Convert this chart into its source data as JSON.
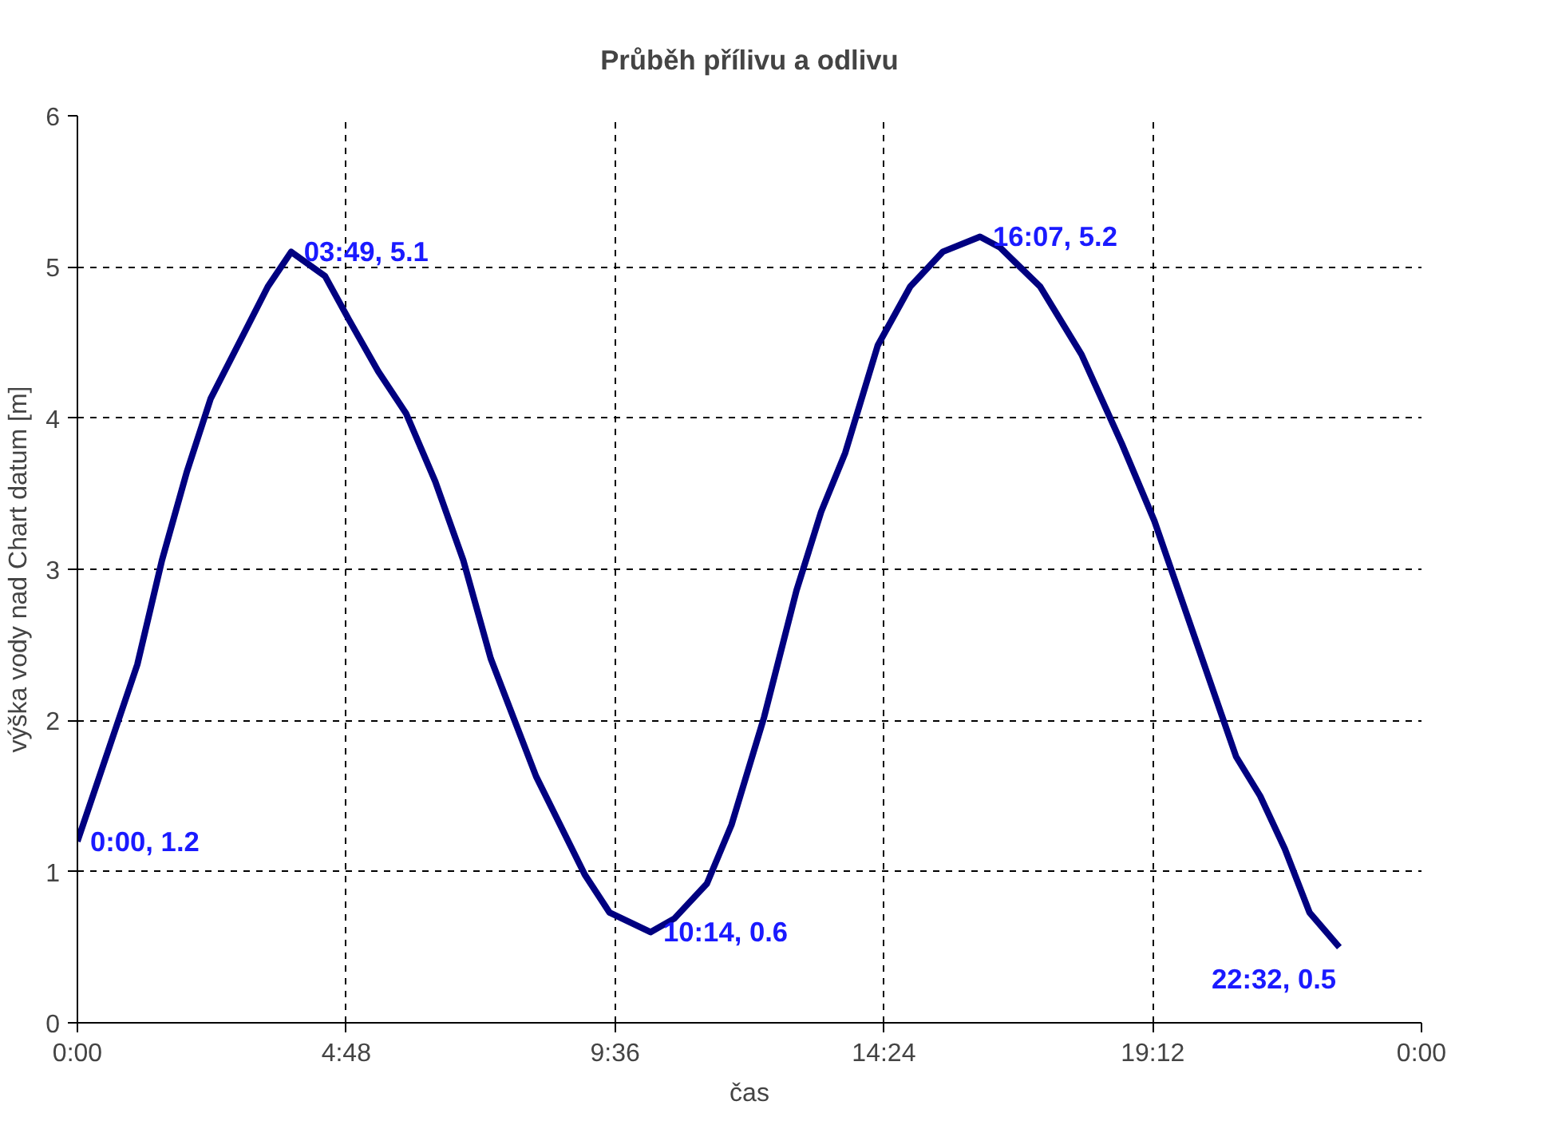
{
  "chart_data": {
    "type": "line",
    "title": "Průběh přílivu a odlivu",
    "xlabel": "čas",
    "ylabel": "výška vody nad Chart datum [m]",
    "x": [
      0,
      1.07,
      1.51,
      1.95,
      2.38,
      2.96,
      3.4,
      3.817,
      4.42,
      4.85,
      5.37,
      5.87,
      6.39,
      6.89,
      7.38,
      8.19,
      9.06,
      9.5,
      10.233,
      10.66,
      11.24,
      11.68,
      12.26,
      12.84,
      13.28,
      13.71,
      14.29,
      14.87,
      15.45,
      16.117,
      16.47,
      17.19,
      17.93,
      18.65,
      19.23,
      19.96,
      20.69,
      21.12,
      21.56,
      22.0,
      22.533
    ],
    "series": [
      {
        "color": "#000080",
        "values": [
          1.2,
          2.37,
          3.06,
          3.64,
          4.13,
          4.55,
          4.87,
          5.1,
          4.94,
          4.65,
          4.31,
          4.03,
          3.58,
          3.06,
          2.41,
          1.63,
          0.98,
          0.73,
          0.6,
          0.69,
          0.92,
          1.31,
          2.02,
          2.86,
          3.38,
          3.77,
          4.48,
          4.87,
          5.1,
          5.2,
          5.13,
          4.87,
          4.42,
          3.83,
          3.32,
          2.54,
          1.76,
          1.5,
          1.15,
          0.73,
          0.5
        ]
      }
    ],
    "xlim": [
      0,
      24
    ],
    "xticks": [
      {
        "value": 0,
        "label": "0:00"
      },
      {
        "value": 4.8,
        "label": "4:48"
      },
      {
        "value": 9.6,
        "label": "9:36"
      },
      {
        "value": 14.4,
        "label": "14:24"
      },
      {
        "value": 19.2,
        "label": "19:12"
      },
      {
        "value": 24,
        "label": "0:00"
      }
    ],
    "ylim": [
      0,
      6
    ],
    "yticks": [
      0,
      1,
      2,
      3,
      4,
      5,
      6
    ],
    "grid": true,
    "marker": "none",
    "line_style": "solid",
    "annotations": [
      {
        "text": "0:00, 1.2",
        "x": 0,
        "y": 1.2
      },
      {
        "text": "03:49, 5.1",
        "x": 3.817,
        "y": 5.1
      },
      {
        "text": "10:14, 0.6",
        "x": 10.233,
        "y": 0.6
      },
      {
        "text": "16:07, 5.2",
        "x": 16.117,
        "y": 5.2
      },
      {
        "text": "22:32, 0.5",
        "x": 22.533,
        "y": 0.5
      }
    ]
  }
}
